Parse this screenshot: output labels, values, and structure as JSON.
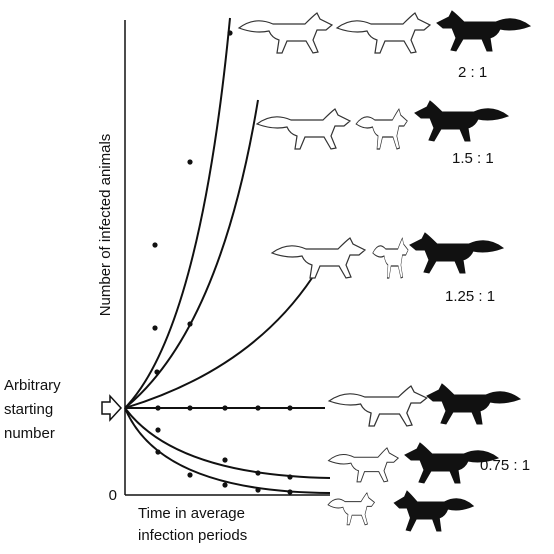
{
  "y_axis_label": "Number of infected animals",
  "x_axis_label": [
    "Time in average",
    "infection periods"
  ],
  "origin_label": "0",
  "start_label": [
    "Arbitrary",
    "starting",
    "number"
  ],
  "ratios": [
    "2 : 1",
    "1.5 : 1",
    "1.25 : 1",
    "0.75 : 1"
  ]
}
